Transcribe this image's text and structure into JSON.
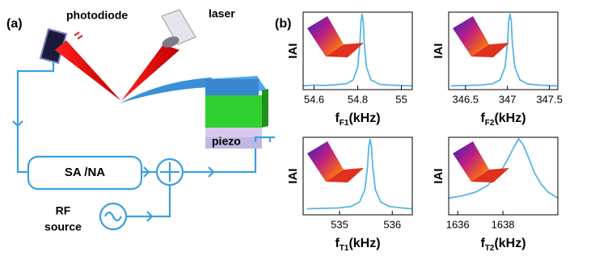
{
  "panel_a": {
    "label": "(a)",
    "photodiode": "photodiode",
    "laser": "laser",
    "piezo": "piezo",
    "analyzer": "SA /NA",
    "rf_line1": "RF",
    "rf_line2": "source"
  },
  "panel_b_label": "(b)",
  "chart_data": [
    {
      "type": "line",
      "y_label": "IAI",
      "x_label": {
        "main": "f",
        "sub": "F1",
        "unit": "(kHz)"
      },
      "x": [
        54.55,
        54.6,
        54.65,
        54.7,
        54.75,
        54.78,
        54.8,
        54.81,
        54.815,
        54.82,
        54.825,
        54.83,
        54.84,
        54.86,
        54.9,
        54.95,
        55.0,
        55.05
      ],
      "values": [
        0.05,
        0.06,
        0.055,
        0.065,
        0.08,
        0.13,
        0.3,
        0.61,
        0.9,
        1.0,
        0.9,
        0.61,
        0.3,
        0.13,
        0.07,
        0.06,
        0.055,
        0.05
      ],
      "color": "#5ab4e6",
      "xlim": [
        54.55,
        55.05
      ],
      "ylim": [
        0,
        1.02
      ],
      "xticks": [
        54.6,
        54.8,
        55
      ]
    },
    {
      "type": "line",
      "y_label": "IAI",
      "x_label": {
        "main": "f",
        "sub": "F2",
        "unit": "(kHz)"
      },
      "x": [
        346.33,
        346.505,
        346.68,
        346.82,
        346.913,
        346.972,
        347.001,
        347.015,
        347.03,
        347.045,
        347.059,
        347.088,
        347.147,
        347.24,
        347.38,
        347.59
      ],
      "values": [
        0.05,
        0.055,
        0.06,
        0.075,
        0.13,
        0.3,
        0.61,
        0.9,
        1.0,
        0.9,
        0.61,
        0.3,
        0.13,
        0.075,
        0.06,
        0.05
      ],
      "color": "#5ab4e6",
      "xlim": [
        346.3,
        347.6
      ],
      "ylim": [
        0,
        1.02
      ],
      "xticks": [
        346.5,
        347,
        347.5
      ]
    },
    {
      "type": "line",
      "y_label": "IAI",
      "x_label": {
        "main": "f",
        "sub": "T1",
        "unit": "(kHz)"
      },
      "x": [
        534.38,
        534.68,
        534.98,
        535.22,
        535.38,
        535.48,
        535.53,
        535.555,
        535.58,
        535.605,
        535.63,
        535.68,
        535.78,
        535.94,
        536.18,
        536.38
      ],
      "values": [
        0.08,
        0.085,
        0.09,
        0.11,
        0.17,
        0.33,
        0.63,
        0.9,
        1.0,
        0.9,
        0.63,
        0.33,
        0.17,
        0.11,
        0.09,
        0.08
      ],
      "color": "#5ab4e6",
      "xlim": [
        534.31,
        536.38
      ],
      "ylim": [
        0,
        1.02
      ],
      "xticks": [
        535,
        536
      ]
    },
    {
      "type": "line",
      "y_label": "IAI",
      "x_label": {
        "main": "f",
        "sub": "T2",
        "unit": "(kHz)"
      },
      "x": [
        1635.6,
        1636.2,
        1636.8,
        1637.3,
        1637.7,
        1638.0,
        1638.3,
        1638.5,
        1638.7,
        1638.9,
        1639.1,
        1639.4,
        1639.7,
        1640.0,
        1640.43
      ],
      "values": [
        0.22,
        0.25,
        0.3,
        0.38,
        0.5,
        0.62,
        0.78,
        0.9,
        1.0,
        0.92,
        0.78,
        0.55,
        0.4,
        0.3,
        0.22
      ],
      "color": "#5ab4e6",
      "xlim": [
        1635.6,
        1640.43
      ],
      "ylim": [
        0,
        1.02
      ],
      "xticks": [
        1636,
        1638
      ]
    }
  ]
}
